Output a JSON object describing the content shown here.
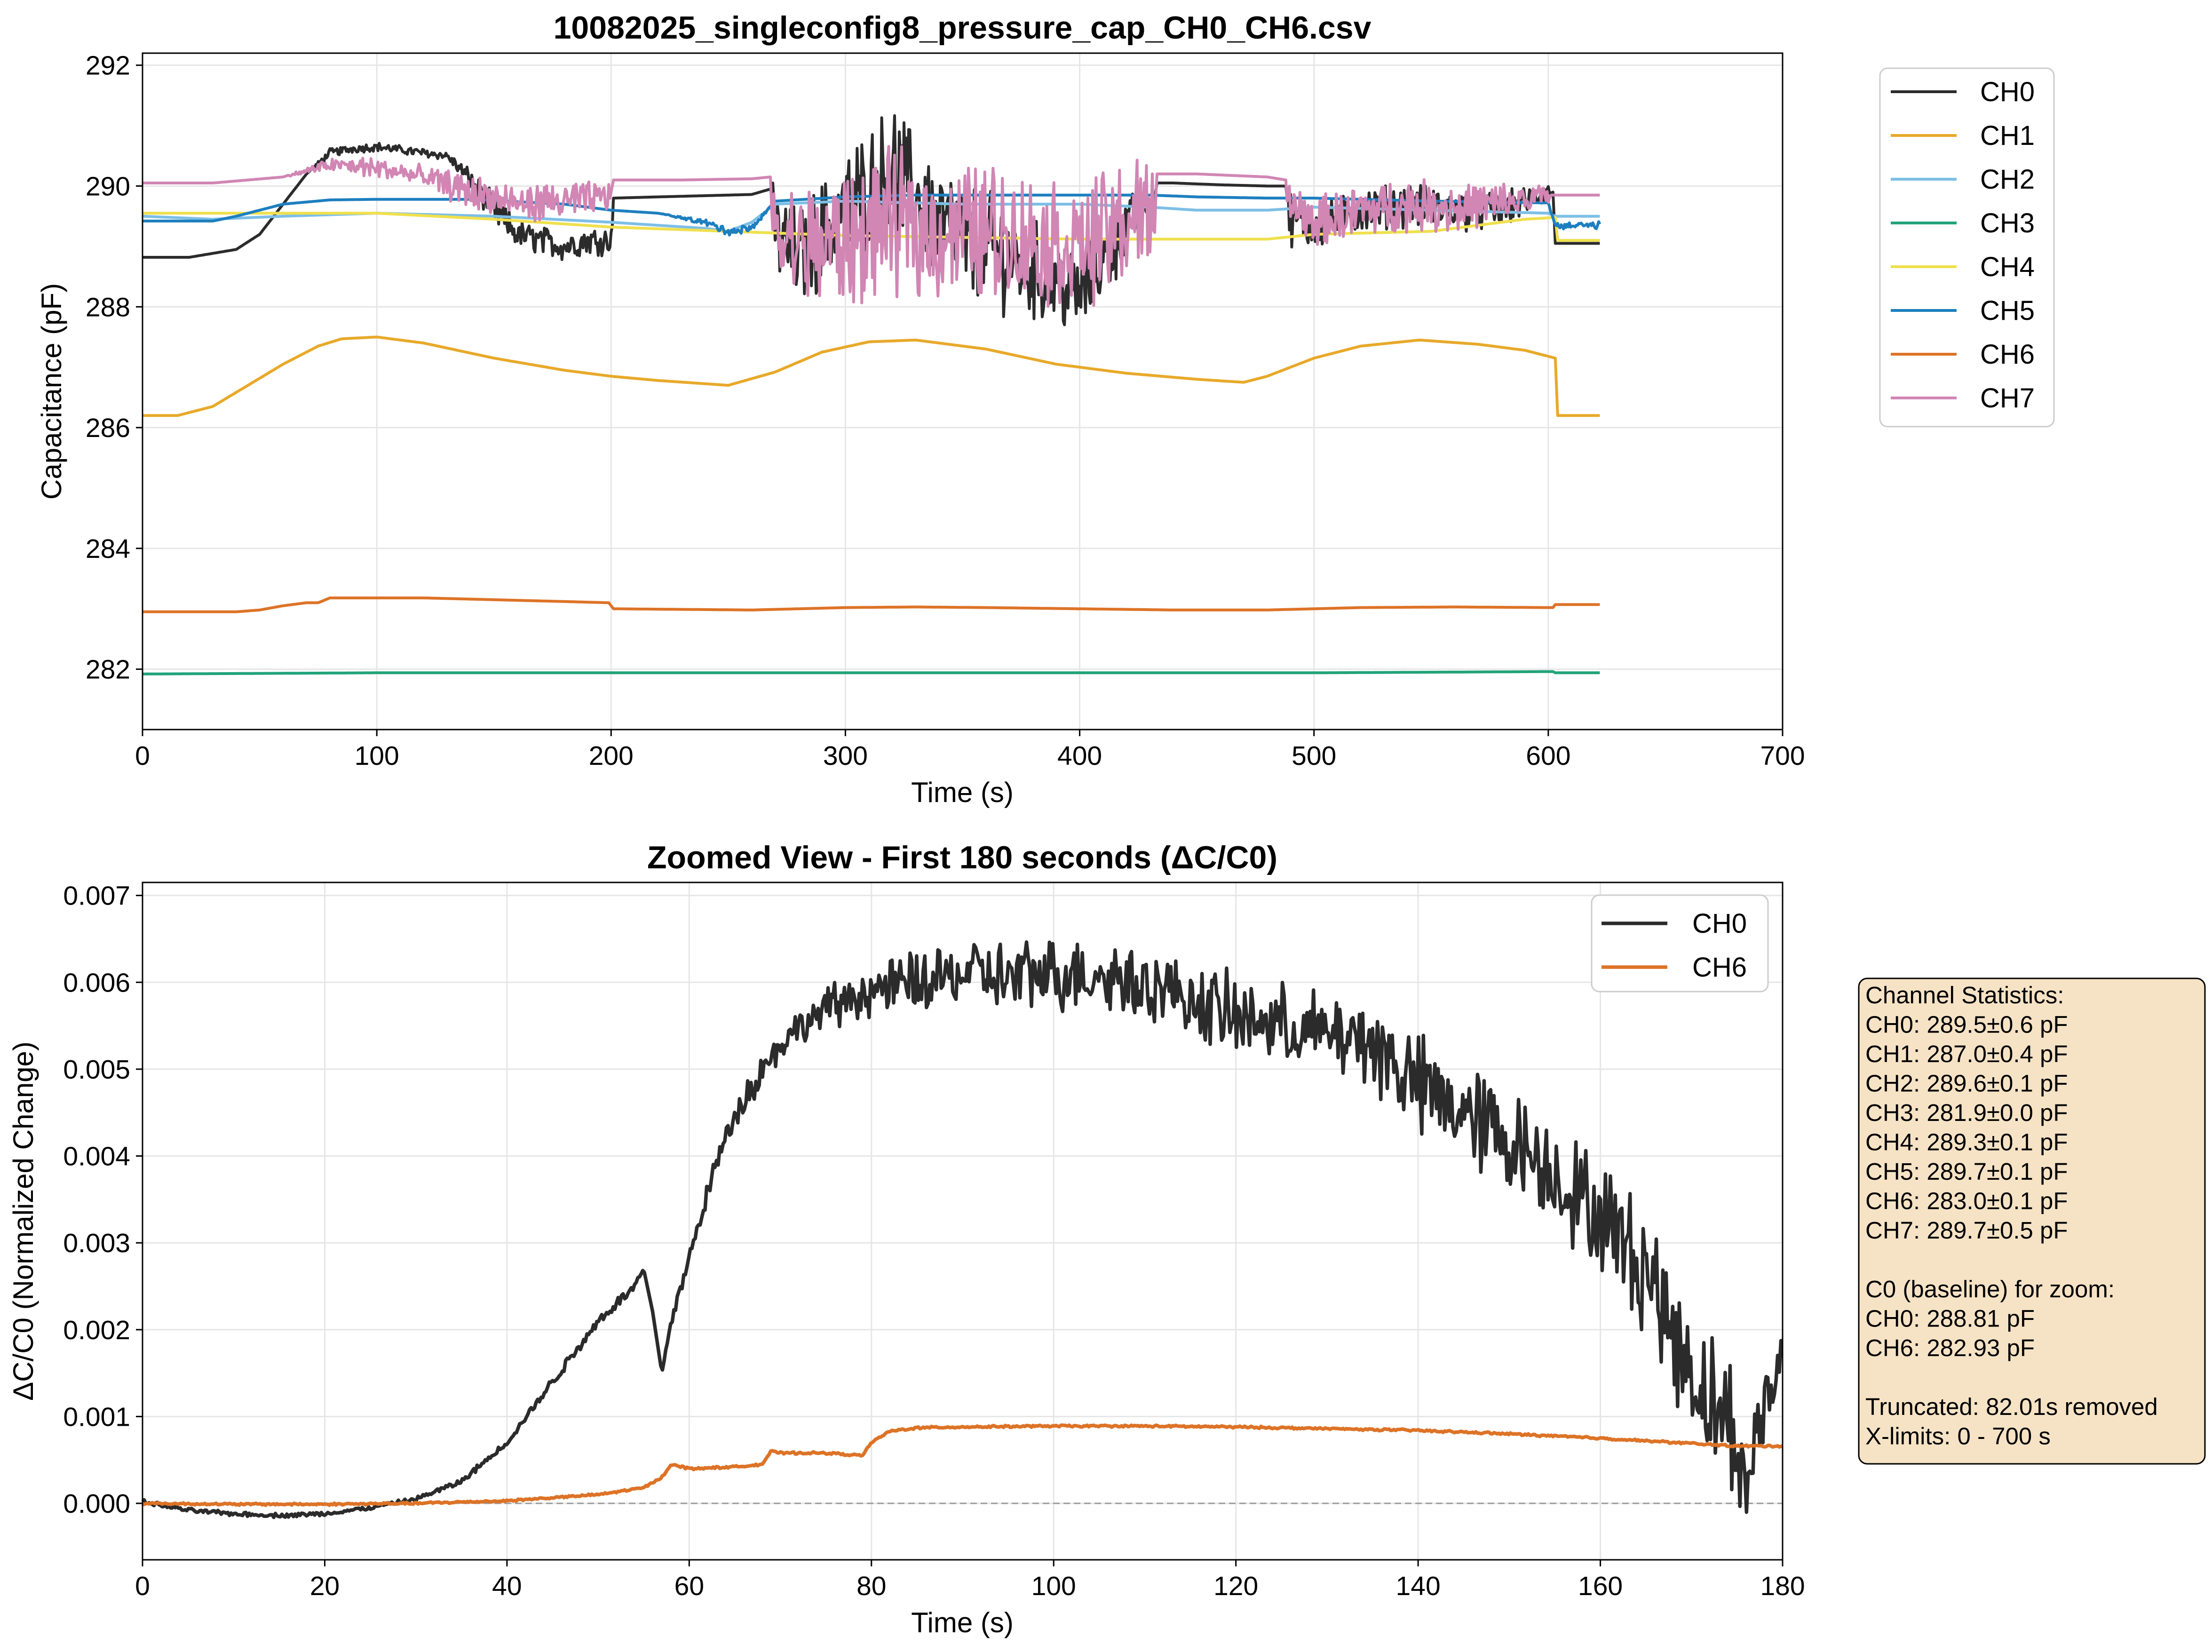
{
  "colors": {
    "CH0": "#2b2b2b",
    "CH1": "#e8a92a",
    "CH2": "#7dbfe6",
    "CH3": "#22a37a",
    "CH4": "#f0e04e",
    "CH5": "#1d7fbf",
    "CH6": "#dd7327",
    "CH7": "#d186b4",
    "stats_box_fill": "#f6e3c5"
  },
  "chart_data": [
    {
      "type": "line",
      "title": "10082025_singleconfig8_pressure_cap_CH0_CH6.csv",
      "xlabel": "Time (s)",
      "ylabel": "Capacitance (pF)",
      "xlim": [
        0,
        700
      ],
      "ylim": [
        281,
        292.2
      ],
      "xticks": [
        "0",
        "100",
        "200",
        "300",
        "400",
        "500",
        "600",
        "700"
      ],
      "yticks": [
        "282",
        "284",
        "286",
        "288",
        "290",
        "292"
      ],
      "grid": true,
      "legend_position": "outside-right-top",
      "series": [
        {
          "name": "CH0",
          "x": [
            0,
            20,
            40,
            50,
            60,
            70,
            80,
            90,
            100,
            110,
            120,
            130,
            140,
            150,
            160,
            170,
            180,
            190,
            200,
            201,
            220,
            240,
            260,
            268,
            269,
            280,
            300,
            320,
            340,
            360,
            380,
            400,
            420,
            432,
            433,
            440,
            460,
            480,
            488,
            489,
            500,
            520,
            540,
            560,
            580,
            600,
            602,
            603,
            622
          ],
          "y": [
            288.82,
            288.82,
            288.95,
            289.2,
            289.7,
            290.2,
            290.55,
            290.62,
            290.65,
            290.6,
            290.55,
            290.5,
            290.1,
            289.6,
            289.2,
            289.1,
            289.0,
            289.1,
            289.1,
            289.8,
            289.82,
            289.84,
            289.86,
            289.95,
            289.3,
            288.8,
            289.6,
            290.3,
            289.4,
            289.0,
            288.6,
            288.2,
            289.3,
            289.8,
            290.05,
            290.05,
            290.02,
            290.0,
            290.0,
            289.5,
            289.3,
            289.6,
            289.7,
            289.6,
            289.6,
            289.9,
            289.9,
            289.05,
            289.05
          ],
          "amp": [
            0,
            0,
            0,
            0,
            0,
            0,
            0.06,
            0.06,
            0.06,
            0.06,
            0.06,
            0.06,
            0.15,
            0.22,
            0.2,
            0.2,
            0.2,
            0.2,
            0.2,
            0,
            0,
            0,
            0,
            0,
            0.6,
            0.7,
            0.8,
            0.9,
            0.8,
            0.8,
            0.7,
            0.6,
            0.5,
            0,
            0,
            0,
            0,
            0,
            0,
            0.4,
            0.3,
            0.3,
            0.3,
            0.3,
            0.25,
            0.15,
            0,
            0,
            0
          ]
        },
        {
          "name": "CH1",
          "x": [
            0,
            15,
            30,
            45,
            60,
            75,
            85,
            100,
            120,
            150,
            180,
            200,
            220,
            250,
            270,
            290,
            310,
            330,
            360,
            390,
            420,
            450,
            470,
            480,
            500,
            520,
            545,
            570,
            590,
            603,
            604,
            622
          ],
          "y": [
            286.2,
            286.2,
            286.35,
            286.7,
            287.05,
            287.35,
            287.47,
            287.5,
            287.4,
            287.15,
            286.95,
            286.85,
            286.78,
            286.7,
            286.92,
            287.25,
            287.42,
            287.45,
            287.3,
            287.05,
            286.9,
            286.8,
            286.75,
            286.85,
            287.15,
            287.35,
            287.45,
            287.38,
            287.28,
            287.15,
            286.2,
            286.2
          ],
          "amp": [
            0
          ]
        },
        {
          "name": "CH2",
          "x": [
            0,
            30,
            60,
            100,
            150,
            200,
            240,
            250,
            260,
            270,
            300,
            350,
            400,
            430,
            450,
            480,
            500,
            550,
            600,
            603,
            622
          ],
          "y": [
            289.5,
            289.45,
            289.5,
            289.55,
            289.5,
            289.4,
            289.3,
            289.25,
            289.4,
            289.7,
            289.75,
            289.7,
            289.7,
            289.65,
            289.6,
            289.6,
            289.65,
            289.6,
            289.55,
            289.5,
            289.5
          ],
          "amp": [
            0
          ]
        },
        {
          "name": "CH3",
          "x": [
            0,
            100,
            200,
            300,
            400,
            500,
            600,
            602,
            603,
            622
          ],
          "y": [
            281.92,
            281.94,
            281.94,
            281.94,
            281.94,
            281.94,
            281.96,
            281.96,
            281.94,
            281.94
          ],
          "amp": [
            0
          ]
        },
        {
          "name": "CH4",
          "x": [
            0,
            50,
            100,
            150,
            200,
            250,
            300,
            350,
            400,
            450,
            480,
            500,
            550,
            590,
            603,
            604,
            622
          ],
          "y": [
            289.55,
            289.55,
            289.55,
            289.45,
            289.32,
            289.25,
            289.18,
            289.15,
            289.12,
            289.12,
            289.12,
            289.2,
            289.25,
            289.45,
            289.48,
            289.1,
            289.1
          ],
          "amp": [
            0
          ]
        },
        {
          "name": "CH5",
          "x": [
            0,
            30,
            40,
            60,
            80,
            100,
            140,
            180,
            200,
            220,
            240,
            250,
            260,
            270,
            300,
            330,
            400,
            430,
            450,
            480,
            500,
            550,
            600,
            603,
            622
          ],
          "y": [
            289.42,
            289.42,
            289.5,
            289.7,
            289.77,
            289.78,
            289.78,
            289.7,
            289.6,
            289.55,
            289.4,
            289.25,
            289.3,
            289.75,
            289.82,
            289.85,
            289.85,
            289.85,
            289.82,
            289.8,
            289.8,
            289.75,
            289.72,
            289.35,
            289.35
          ],
          "amp": [
            0,
            0,
            0,
            0,
            0,
            0,
            0,
            0,
            0,
            0,
            0.04,
            0.06,
            0.05,
            0,
            0,
            0,
            0,
            0,
            0,
            0,
            0,
            0,
            0,
            0.05,
            0.05
          ]
        },
        {
          "name": "CH6",
          "x": [
            0,
            40,
            50,
            60,
            70,
            75,
            80,
            90,
            120,
            150,
            180,
            199,
            200,
            201,
            230,
            260,
            300,
            330,
            360,
            400,
            440,
            480,
            520,
            560,
            600,
            602,
            603,
            622
          ],
          "y": [
            282.95,
            282.95,
            282.98,
            283.05,
            283.1,
            283.1,
            283.18,
            283.18,
            283.18,
            283.15,
            283.12,
            283.1,
            283.05,
            283.0,
            282.99,
            282.98,
            283.02,
            283.03,
            283.02,
            283.0,
            282.98,
            282.98,
            283.02,
            283.03,
            283.02,
            283.02,
            283.07,
            283.07
          ],
          "amp": [
            0
          ]
        },
        {
          "name": "CH7",
          "x": [
            0,
            30,
            60,
            80,
            100,
            120,
            140,
            160,
            180,
            199,
            200,
            201,
            230,
            260,
            268,
            269,
            280,
            300,
            320,
            340,
            360,
            380,
            400,
            420,
            432,
            433,
            450,
            480,
            488,
            489,
            500,
            520,
            540,
            560,
            580,
            600,
            602,
            603,
            622
          ],
          "y": [
            290.05,
            290.05,
            290.15,
            290.35,
            290.3,
            290.15,
            289.9,
            289.7,
            289.75,
            289.8,
            289.9,
            290.1,
            290.1,
            290.12,
            290.15,
            289.3,
            289.0,
            289.1,
            289.4,
            289.2,
            289.3,
            289.1,
            289.0,
            289.4,
            289.6,
            290.2,
            290.2,
            290.15,
            290.1,
            289.7,
            289.4,
            289.6,
            289.7,
            289.65,
            289.7,
            289.85,
            289.85,
            289.85,
            289.85
          ],
          "amp": [
            0,
            0,
            0,
            0.1,
            0.15,
            0.15,
            0.25,
            0.25,
            0.25,
            0.25,
            0,
            0,
            0,
            0,
            0,
            0.8,
            0.8,
            0.95,
            1.0,
            0.95,
            0.95,
            0.9,
            0.85,
            0.9,
            0.7,
            0,
            0,
            0,
            0,
            0.35,
            0.35,
            0.35,
            0.35,
            0.35,
            0.3,
            0.15,
            0,
            0,
            0
          ]
        }
      ]
    },
    {
      "type": "line",
      "title": "Zoomed View - First 180 seconds (ΔC/C0)",
      "xlabel": "Time (s)",
      "ylabel": "ΔC/C0 (Normalized Change)",
      "xlim": [
        0,
        180
      ],
      "ylim": [
        -0.00065,
        0.00715
      ],
      "xticks": [
        "0",
        "20",
        "40",
        "60",
        "80",
        "100",
        "120",
        "140",
        "160",
        "180"
      ],
      "yticks": [
        "0.000",
        "0.001",
        "0.002",
        "0.003",
        "0.004",
        "0.005",
        "0.006",
        "0.007"
      ],
      "zero_line": true,
      "grid": true,
      "legend_position": "upper right",
      "series": [
        {
          "name": "CH0",
          "x": [
            0,
            5,
            10,
            15,
            20,
            25,
            30,
            35,
            40,
            45,
            50,
            54,
            55,
            56,
            57,
            58,
            60,
            62,
            65,
            70,
            75,
            80,
            85,
            90,
            95,
            100,
            105,
            110,
            115,
            120,
            125,
            130,
            135,
            140,
            145,
            150,
            155,
            160,
            165,
            170,
            175,
            176,
            177,
            178,
            180
          ],
          "y": [
            2e-05,
            -8e-05,
            -0.00012,
            -0.00014,
            -0.00012,
            -5e-05,
            5e-05,
            0.00025,
            0.0007,
            0.0014,
            0.0021,
            0.0025,
            0.0027,
            0.0022,
            0.0015,
            0.0021,
            0.0028,
            0.0036,
            0.0045,
            0.0053,
            0.0057,
            0.0059,
            0.006,
            0.0061,
            0.00605,
            0.0061,
            0.0061,
            0.006,
            0.0058,
            0.0056,
            0.0055,
            0.0054,
            0.0053,
            0.0048,
            0.0045,
            0.0042,
            0.0038,
            0.0033,
            0.0027,
            0.0015,
            0.0008,
            0.0,
            0.0008,
            0.001,
            0.0018
          ],
          "amp": [
            2e-05,
            2e-05,
            2e-05,
            2e-05,
            2e-05,
            2e-05,
            2e-05,
            3e-05,
            3e-05,
            5e-05,
            5e-05,
            5e-05,
            0,
            0,
            0,
            5e-05,
            0.0001,
            0.0001,
            0.00015,
            0.00015,
            0.0002,
            0.00025,
            0.0003,
            0.00035,
            0.00035,
            0.00035,
            0.00035,
            0.00035,
            0.00035,
            0.0004,
            0.0004,
            0.0004,
            0.00045,
            0.0005,
            0.0005,
            0.0005,
            0.0005,
            0.00055,
            0.0006,
            0.0006,
            0.00065,
            0.0003,
            0.0004,
            0.0006,
            0.0004
          ]
        },
        {
          "name": "CH6",
          "x": [
            0,
            10,
            20,
            30,
            40,
            50,
            55,
            57,
            58,
            60,
            65,
            68,
            69,
            70,
            75,
            79,
            80,
            82,
            85,
            90,
            100,
            110,
            120,
            130,
            140,
            150,
            160,
            170,
            175,
            180
          ],
          "y": [
            0.0,
            -1e-05,
            -1e-05,
            0.0,
            3e-05,
            0.0001,
            0.00018,
            0.0003,
            0.00045,
            0.0004,
            0.00042,
            0.00045,
            0.0006,
            0.00058,
            0.00058,
            0.00055,
            0.0007,
            0.00083,
            0.00087,
            0.00088,
            0.00089,
            0.00089,
            0.00088,
            0.00086,
            0.00084,
            0.0008,
            0.00075,
            0.00069,
            0.00066,
            0.00066
          ],
          "amp": [
            1e-05
          ]
        }
      ]
    }
  ],
  "stats_box": {
    "lines": [
      "Channel Statistics:",
      "CH0: 289.5±0.6 pF",
      "CH1: 287.0±0.4 pF",
      "CH2: 289.6±0.1 pF",
      "CH3: 281.9±0.0 pF",
      "CH4: 289.3±0.1 pF",
      "CH5: 289.7±0.1 pF",
      "CH6: 283.0±0.1 pF",
      "CH7: 289.7±0.5 pF",
      "",
      "C0 (baseline) for zoom:",
      "CH0: 288.81 pF",
      "CH6: 282.93 pF",
      "",
      "Truncated: 82.01s removed",
      "X-limits: 0 - 700 s"
    ]
  }
}
